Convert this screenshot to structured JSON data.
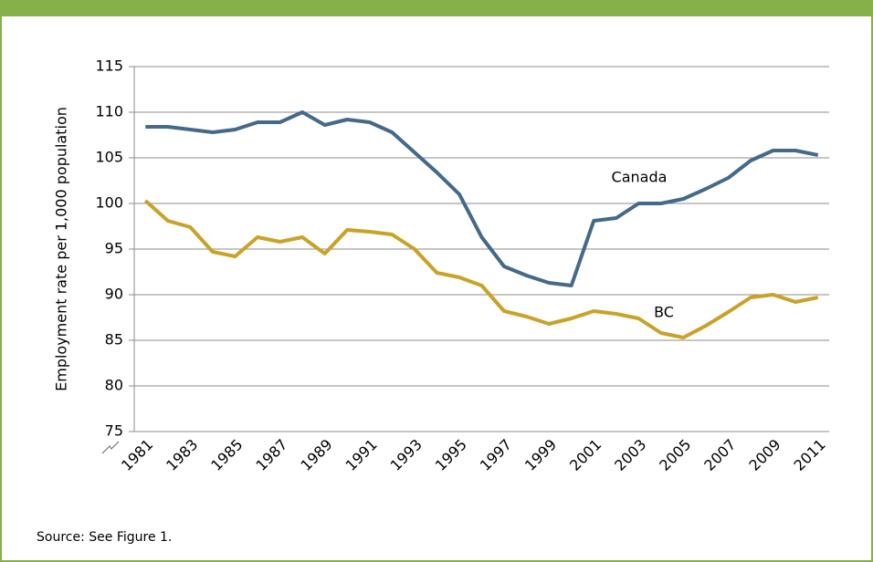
{
  "chart_data": {
    "type": "line",
    "y_label": "Employment rate per 1,000 population",
    "categories": [
      "1981",
      null,
      "1983",
      null,
      "1985",
      null,
      "1987",
      null,
      "1989",
      null,
      "1991",
      null,
      "1993",
      null,
      "1995",
      null,
      "1997",
      null,
      "1999",
      null,
      "2001",
      null,
      "2003",
      null,
      "2005",
      null,
      "2007",
      null,
      "2009",
      null,
      "2011"
    ],
    "series": [
      {
        "name": "Canada",
        "color": "#44698a",
        "values": [
          108.4,
          108.4,
          108.1,
          107.8,
          108.1,
          108.9,
          108.9,
          110.0,
          108.6,
          109.2,
          108.9,
          107.8,
          105.6,
          103.4,
          101.0,
          96.3,
          93.1,
          92.1,
          91.3,
          91.0,
          98.1,
          98.4,
          100.0,
          100.0,
          100.5,
          101.6,
          102.8,
          104.7,
          105.8,
          105.8,
          105.3
        ]
      },
      {
        "name": "BC",
        "color": "#c9a227",
        "values": [
          100.3,
          98.1,
          97.4,
          94.7,
          94.2,
          96.3,
          95.8,
          96.3,
          94.5,
          97.1,
          96.9,
          96.6,
          95.0,
          92.4,
          91.9,
          91.0,
          88.2,
          87.6,
          86.8,
          87.4,
          88.2,
          87.9,
          87.4,
          85.8,
          85.3,
          86.6,
          88.1,
          89.7,
          90.0,
          89.2,
          89.7
        ]
      }
    ],
    "ylim": [
      75,
      115
    ],
    "yticks": [
      75,
      80,
      85,
      90,
      95,
      100,
      105,
      110,
      115
    ],
    "grid": true,
    "source": "Source: See Figure 1."
  }
}
